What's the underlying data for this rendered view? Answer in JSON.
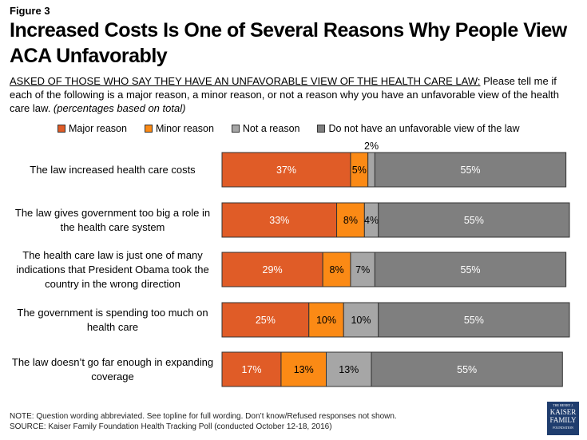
{
  "figure_label": "Figure 3",
  "title": "Increased Costs Is One of Several Reasons Why People View ACA Unfavorably",
  "subtitle": {
    "underlined": "ASKED OF THOSE WHO SAY THEY HAVE AN UNFAVORABLE VIEW OF THE HEALTH CARE LAW:",
    "text": " Please tell me if each of the following is a major reason, a minor reason, or not a reason why you have an unfavorable view of the health care law. ",
    "italic": "(percentages based on total)"
  },
  "note": "NOTE: Question wording abbreviated. See topline for full wording. Don’t know/Refused responses not shown.",
  "source": "SOURCE: Kaiser Family Foundation Health Tracking Poll (conducted October 12-18, 2016)",
  "logo": {
    "line1": "THE HENRY J.",
    "line2": "KAISER",
    "line3": "FAMILY",
    "line4": "FOUNDATION"
  },
  "chart_data": {
    "type": "bar",
    "orientation": "horizontal",
    "stacked": true,
    "title": "Increased Costs Is One of Several Reasons Why People View ACA Unfavorably",
    "categories": [
      "The law increased health care costs",
      "The law gives government too big a role in the health care system",
      "The health care law is just one of many indications that President Obama took the country in the wrong direction",
      "The government is spending too much on health care",
      "The law doesn’t go far enough in expanding coverage"
    ],
    "series": [
      {
        "name": "Major reason",
        "color": "#E05C27",
        "label_color": "#ffffff",
        "values": [
          37,
          33,
          29,
          25,
          17
        ]
      },
      {
        "name": "Minor reason",
        "color": "#FB8A15",
        "label_color": "#000000",
        "values": [
          5,
          8,
          8,
          10,
          13
        ]
      },
      {
        "name": "Not a reason",
        "color": "#A6A6A6",
        "label_color": "#000000",
        "values": [
          2,
          4,
          7,
          10,
          13
        ]
      },
      {
        "name": "Do not have an unfavorable view of the law",
        "color": "#7F7F7F",
        "label_color": "#ffffff",
        "values": [
          55,
          55,
          55,
          55,
          55
        ]
      }
    ],
    "data_labels": true,
    "xlabel": "",
    "ylabel": "",
    "xlim": [
      0,
      100
    ],
    "grid": false,
    "legend": "top"
  }
}
